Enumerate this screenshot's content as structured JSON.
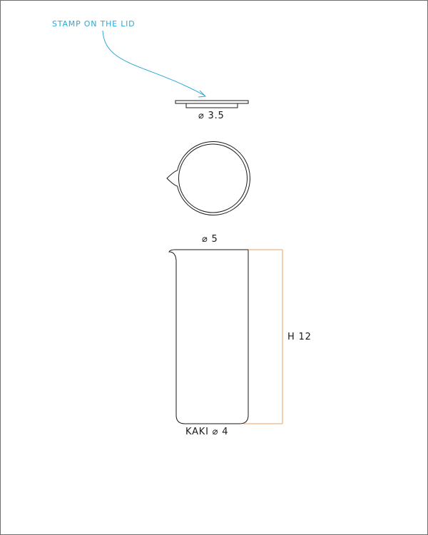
{
  "annotation": {
    "text": "STAMP ON THE LID",
    "color": "#29a9d6"
  },
  "lid": {
    "diameter_label": "⌀ 3.5"
  },
  "jug": {
    "top_diameter_label": "⌀ 5",
    "height_label": "H 12",
    "bottom_label": "KAKI ⌀ 4"
  },
  "colors": {
    "outline": "#1a1a1a",
    "dimension_line": "#e8a060",
    "annotation": "#29a9d6"
  }
}
